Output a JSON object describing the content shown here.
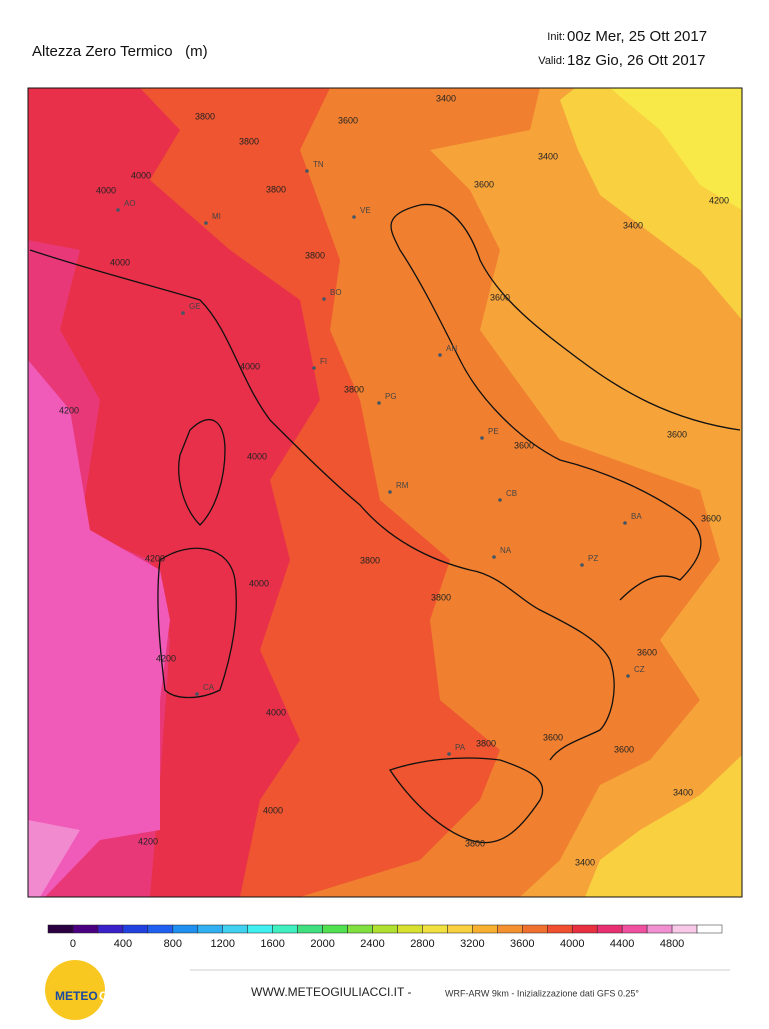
{
  "header": {
    "title": "Altezza Zero Termico   (m)",
    "init_label": "Init:",
    "init": "00z Mer, 25 Ott 2017",
    "valid_label": "Valid:",
    "valid": "18z Gio, 26 Ott 2017"
  },
  "map": {
    "contour_labels": [
      3400,
      3800,
      3600,
      3800,
      3400,
      4000,
      3800,
      3600,
      4000,
      4200,
      3400,
      4000,
      3800,
      3600,
      4000,
      3800,
      4200,
      3600,
      3600,
      4000,
      3600,
      4200,
      3800,
      4000,
      3800,
      3600,
      4200,
      4000,
      3800,
      3600,
      3600,
      3400,
      4000,
      4200,
      3800,
      3400
    ],
    "cities": [
      "TN",
      "MI",
      "VE",
      "AO",
      "BO",
      "GE",
      "FI",
      "AN",
      "PG",
      "PE",
      "RM",
      "CB",
      "BA",
      "NA",
      "PZ",
      "CA",
      "CZ",
      "PA"
    ]
  },
  "colorbar": {
    "levels": [
      0,
      400,
      800,
      1200,
      1600,
      2000,
      2400,
      2800,
      3200,
      3600,
      4000,
      4400,
      4800
    ],
    "colors": [
      "#2a0040",
      "#4b0082",
      "#3a20c8",
      "#2040e0",
      "#2060f0",
      "#2090f0",
      "#30b0f0",
      "#40d0f0",
      "#40f0f0",
      "#40f0c0",
      "#40e080",
      "#50e050",
      "#80e040",
      "#b0e030",
      "#d8e030",
      "#f0e040",
      "#f8d040",
      "#f8b030",
      "#f59030",
      "#f07030",
      "#f05030",
      "#e83040",
      "#e83070",
      "#f050a0",
      "#f090d0",
      "#f8c8e8",
      "#ffffff"
    ]
  },
  "footer": {
    "logo_a": "METEO",
    "logo_b": "GIULIACCI",
    "site": "WWW.METEOGIULIACCI.IT -",
    "model": "WRF-ARW 9km - Inizializzazione dati GFS 0.25°"
  }
}
